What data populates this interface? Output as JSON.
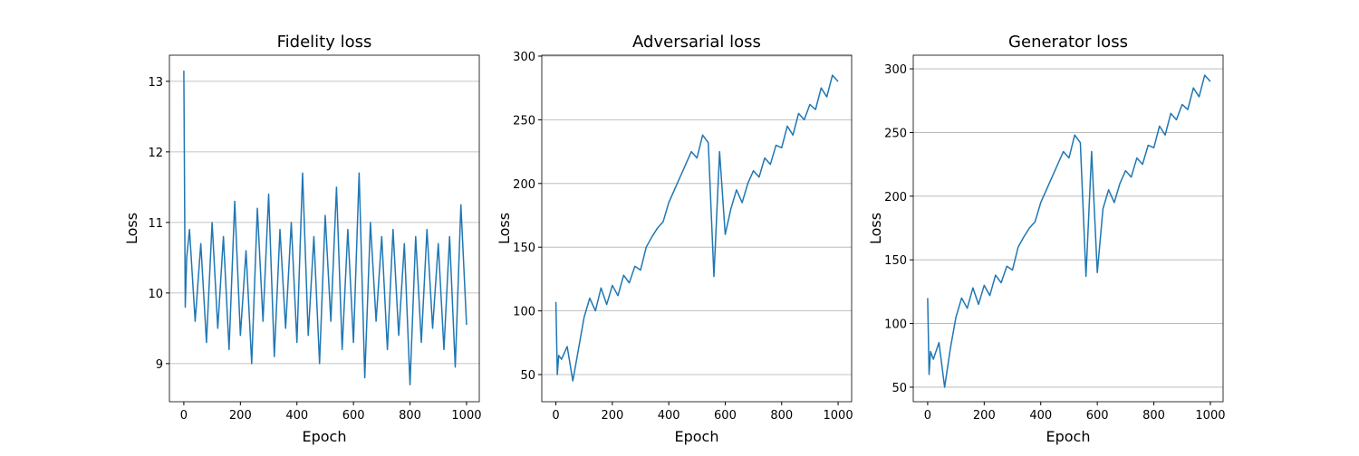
{
  "chart_data": [
    {
      "type": "line",
      "title": "Fidelity loss",
      "xlabel": "Epoch",
      "ylabel": "Loss",
      "color": "#1f77b4",
      "grid": "y",
      "xlim": [
        -51,
        1045
      ],
      "ylim": [
        8.46,
        13.37
      ],
      "xticks": [
        0,
        200,
        400,
        600,
        800,
        1000
      ],
      "yticks": [
        9,
        10,
        11,
        12,
        13
      ],
      "x": [
        0,
        5,
        10,
        20,
        40,
        60,
        80,
        100,
        120,
        140,
        160,
        180,
        200,
        220,
        240,
        260,
        280,
        300,
        320,
        340,
        360,
        380,
        400,
        420,
        440,
        460,
        480,
        500,
        520,
        540,
        560,
        580,
        600,
        620,
        640,
        660,
        680,
        700,
        720,
        740,
        760,
        780,
        800,
        820,
        840,
        860,
        880,
        900,
        920,
        940,
        960,
        980,
        1000
      ],
      "values": [
        13.15,
        9.8,
        10.5,
        10.9,
        9.6,
        10.7,
        9.3,
        11.0,
        9.5,
        10.8,
        9.2,
        11.3,
        9.4,
        10.6,
        9.0,
        11.2,
        9.6,
        11.4,
        9.1,
        10.9,
        9.5,
        11.0,
        9.3,
        11.7,
        9.4,
        10.8,
        9.0,
        11.1,
        9.6,
        11.5,
        9.2,
        10.9,
        9.3,
        11.7,
        8.8,
        11.0,
        9.6,
        10.8,
        9.2,
        10.9,
        9.4,
        10.7,
        8.7,
        10.8,
        9.3,
        10.9,
        9.5,
        10.7,
        9.2,
        10.8,
        8.95,
        11.25,
        9.55
      ]
    },
    {
      "type": "line",
      "title": "Adversarial loss",
      "xlabel": "Epoch",
      "ylabel": "Loss",
      "color": "#1f77b4",
      "grid": "y",
      "xlim": [
        -50,
        1048
      ],
      "ylim": [
        28.7,
        300.7
      ],
      "xticks": [
        0,
        200,
        400,
        600,
        800,
        1000
      ],
      "yticks": [
        50,
        100,
        150,
        200,
        250,
        300
      ],
      "x": [
        0,
        5,
        10,
        20,
        40,
        60,
        80,
        100,
        120,
        140,
        160,
        180,
        200,
        220,
        240,
        260,
        280,
        300,
        320,
        340,
        360,
        380,
        400,
        420,
        440,
        460,
        480,
        500,
        520,
        540,
        560,
        580,
        600,
        620,
        640,
        660,
        680,
        700,
        720,
        740,
        760,
        780,
        800,
        820,
        840,
        860,
        880,
        900,
        920,
        940,
        960,
        980,
        1000
      ],
      "values": [
        107,
        50,
        65,
        62,
        72,
        45,
        70,
        95,
        110,
        100,
        118,
        105,
        120,
        112,
        128,
        122,
        135,
        132,
        150,
        158,
        165,
        170,
        185,
        195,
        205,
        215,
        225,
        220,
        238,
        232,
        127,
        225,
        160,
        180,
        195,
        185,
        200,
        210,
        205,
        220,
        215,
        230,
        228,
        245,
        238,
        255,
        250,
        262,
        258,
        275,
        268,
        285,
        280
      ]
    },
    {
      "type": "line",
      "title": "Generator loss",
      "xlabel": "Epoch",
      "ylabel": "Loss",
      "color": "#1f77b4",
      "grid": "y",
      "xlim": [
        -51,
        1045
      ],
      "ylim": [
        38.6,
        310.7
      ],
      "xticks": [
        0,
        200,
        400,
        600,
        800,
        1000
      ],
      "yticks": [
        50,
        100,
        150,
        200,
        250,
        300
      ],
      "x": [
        0,
        5,
        10,
        20,
        40,
        60,
        80,
        100,
        120,
        140,
        160,
        180,
        200,
        220,
        240,
        260,
        280,
        300,
        320,
        340,
        360,
        380,
        400,
        420,
        440,
        460,
        480,
        500,
        520,
        540,
        560,
        580,
        600,
        620,
        640,
        660,
        680,
        700,
        720,
        740,
        760,
        780,
        800,
        820,
        840,
        860,
        880,
        900,
        920,
        940,
        960,
        980,
        1000
      ],
      "values": [
        120,
        60,
        78,
        72,
        85,
        50,
        80,
        105,
        120,
        112,
        128,
        115,
        130,
        122,
        138,
        132,
        145,
        142,
        160,
        168,
        175,
        180,
        195,
        205,
        215,
        225,
        235,
        230,
        248,
        242,
        137,
        235,
        140,
        190,
        205,
        195,
        210,
        220,
        215,
        230,
        225,
        240,
        238,
        255,
        248,
        265,
        260,
        272,
        268,
        285,
        278,
        295,
        290
      ]
    }
  ]
}
